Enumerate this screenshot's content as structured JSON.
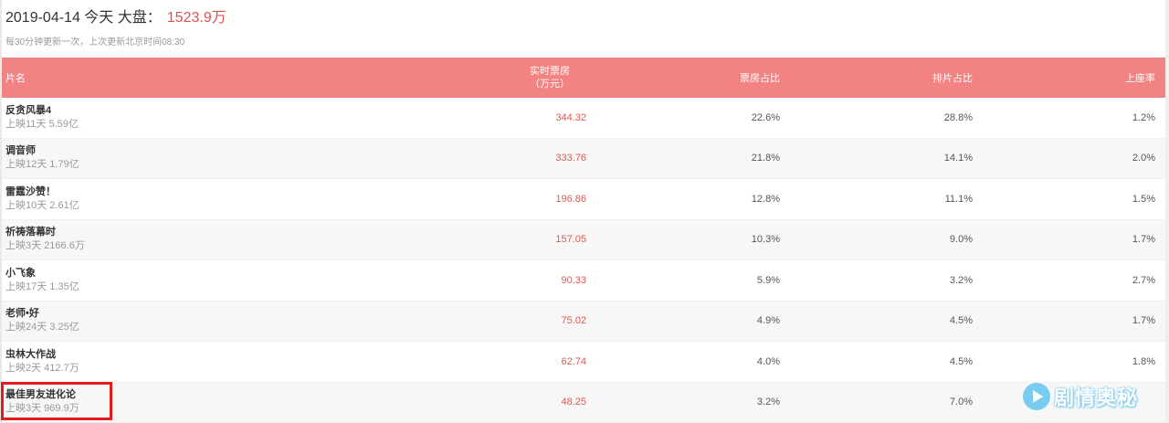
{
  "header": {
    "date": "2019-04-14",
    "today": "今天",
    "market_label": "大盘：",
    "market_total": "1523.9万",
    "update_note": "每30分钟更新一次，上次更新北京时间08:30"
  },
  "table": {
    "columns": {
      "name": "片名",
      "box_line1": "实时票房",
      "box_line2": "（万元）",
      "ratio": "票房占比",
      "schedule": "排片占比",
      "seat": "上座率"
    },
    "rows": [
      {
        "title": "反贪风暴4",
        "info": "上映11天 5.59亿",
        "box": "344.32",
        "ratio": "22.6%",
        "schedule": "28.8%",
        "seat": "1.2%"
      },
      {
        "title": "调音师",
        "info": "上映12天 1.79亿",
        "box": "333.76",
        "ratio": "21.8%",
        "schedule": "14.1%",
        "seat": "2.0%"
      },
      {
        "title": "雷霆沙赞！",
        "info": "上映10天 2.61亿",
        "box": "196.86",
        "ratio": "12.8%",
        "schedule": "11.1%",
        "seat": "1.5%"
      },
      {
        "title": "祈祷落幕时",
        "info": "上映3天 2166.6万",
        "box": "157.05",
        "ratio": "10.3%",
        "schedule": "9.0%",
        "seat": "1.7%"
      },
      {
        "title": "小飞象",
        "info": "上映17天 1.35亿",
        "box": "90.33",
        "ratio": "5.9%",
        "schedule": "3.2%",
        "seat": "2.7%"
      },
      {
        "title": "老师•好",
        "info": "上映24天 3.25亿",
        "box": "75.02",
        "ratio": "4.9%",
        "schedule": "4.5%",
        "seat": "1.7%"
      },
      {
        "title": "虫林大作战",
        "info": "上映2天 412.7万",
        "box": "62.74",
        "ratio": "4.0%",
        "schedule": "4.5%",
        "seat": "1.8%"
      },
      {
        "title": "最佳男友进化论",
        "info": "上映3天 969.9万",
        "box": "48.25",
        "ratio": "3.2%",
        "schedule": "7.0%",
        "seat": ""
      }
    ]
  },
  "watermark": {
    "icon": "play-circle-icon",
    "text": "剧情奥秘"
  },
  "colors": {
    "header_bg": "#f18383",
    "accent_red": "#e05a4e",
    "highlight_border": "#e21b1b",
    "watermark_blue": "#6cc8f0"
  }
}
